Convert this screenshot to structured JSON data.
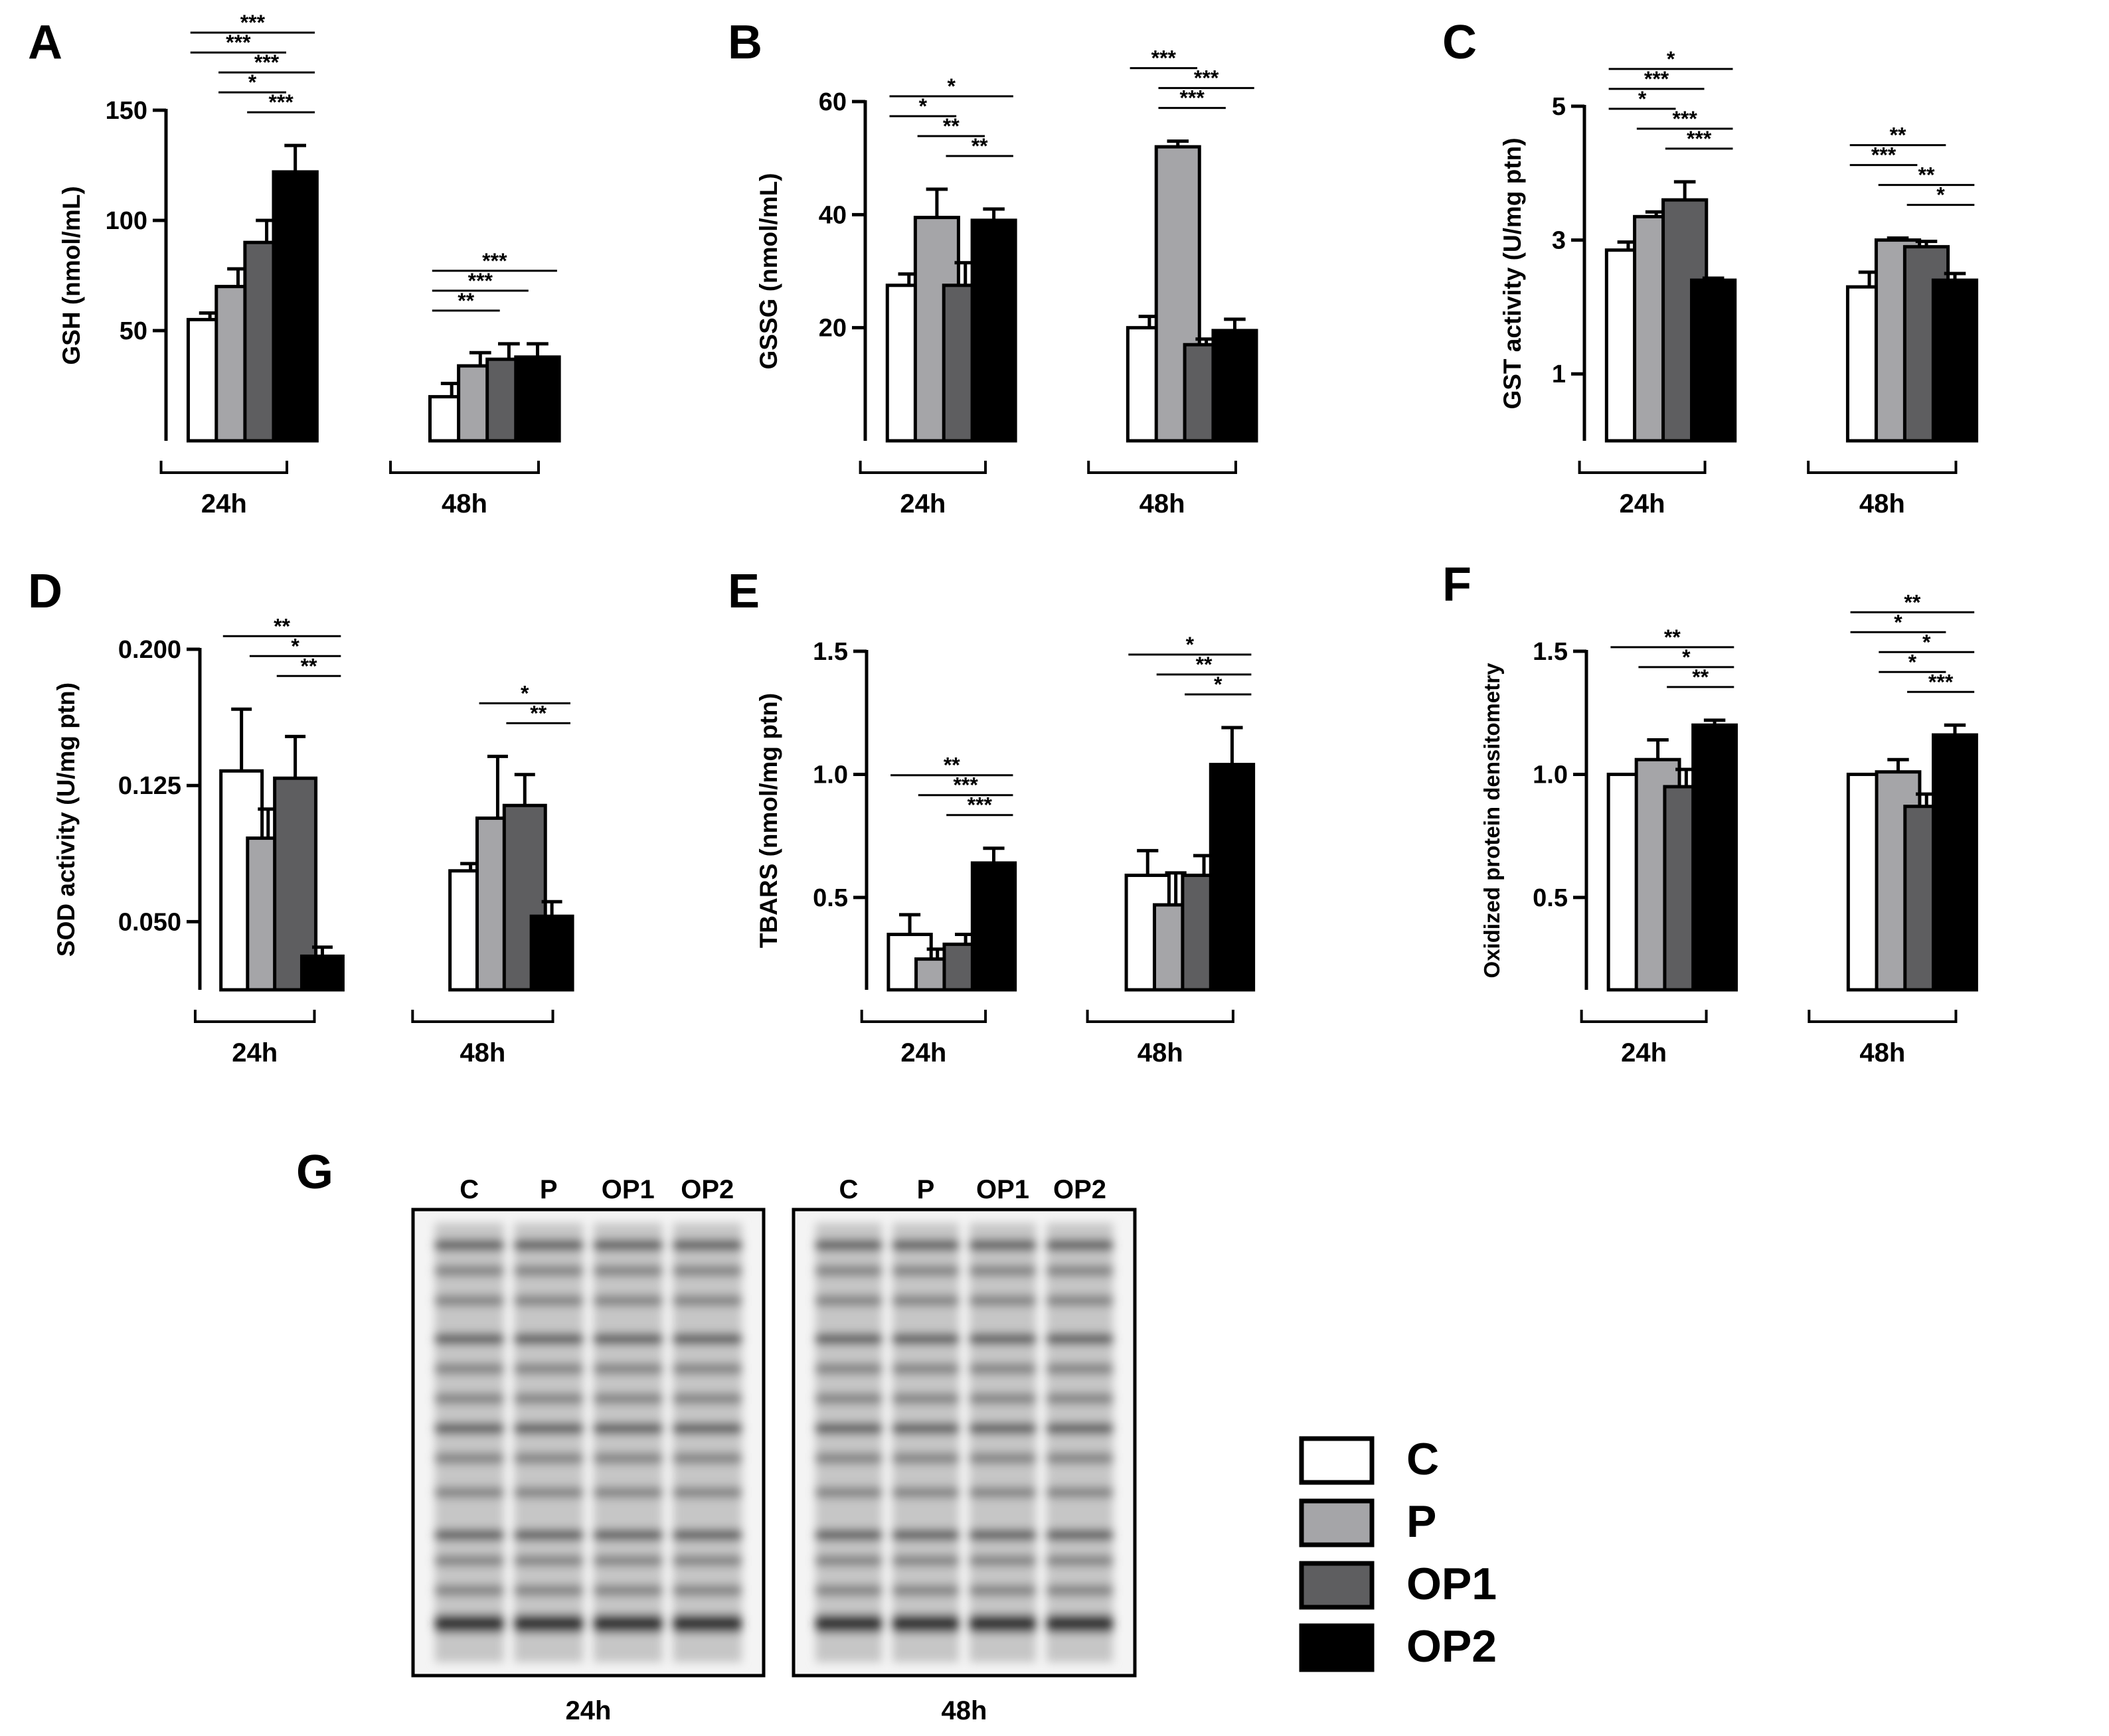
{
  "figure": {
    "panels": [
      {
        "letter": "A"
      },
      {
        "letter": "B"
      },
      {
        "letter": "C"
      },
      {
        "letter": "D"
      },
      {
        "letter": "E"
      },
      {
        "letter": "F"
      },
      {
        "letter": "G"
      }
    ]
  },
  "legend": {
    "items": [
      {
        "label": "C",
        "color": "#ffffff"
      },
      {
        "label": "P",
        "color": "#a5a5a8"
      },
      {
        "label": "OP1",
        "color": "#5e5e60"
      },
      {
        "label": "OP2",
        "color": "#000000"
      }
    ]
  },
  "blot": {
    "panel": "G",
    "lane_labels": [
      "C",
      "P",
      "OP1",
      "OP2",
      "C",
      "P",
      "OP1",
      "OP2"
    ],
    "time_labels": [
      "24h",
      "48h"
    ]
  },
  "chart_data": [
    {
      "panel": "A",
      "type": "bar",
      "ylabel": "GSH (nmol/mL)",
      "ylim": [
        0,
        150
      ],
      "yticks": [
        50,
        100,
        150
      ],
      "yticklabels": [
        "50",
        "100",
        "150"
      ],
      "groups": [
        "24h",
        "48h"
      ],
      "series": [
        {
          "name": "C",
          "values": [
            55,
            20
          ],
          "errors": [
            3,
            6
          ]
        },
        {
          "name": "P",
          "values": [
            70,
            34
          ],
          "errors": [
            8,
            6
          ]
        },
        {
          "name": "OP1",
          "values": [
            90,
            37
          ],
          "errors": [
            10,
            7
          ]
        },
        {
          "name": "OP2",
          "values": [
            122,
            38
          ],
          "errors": [
            12,
            6
          ]
        }
      ],
      "significance": [
        {
          "group": 0,
          "from": 0,
          "to": 3,
          "label": "***"
        },
        {
          "group": 0,
          "from": 0,
          "to": 2,
          "label": "***"
        },
        {
          "group": 0,
          "from": 1,
          "to": 3,
          "label": "***"
        },
        {
          "group": 0,
          "from": 1,
          "to": 2,
          "label": "*"
        },
        {
          "group": 0,
          "from": 2,
          "to": 3,
          "label": "***"
        },
        {
          "group": 1,
          "from": 0,
          "to": 3,
          "label": "***"
        },
        {
          "group": 1,
          "from": 0,
          "to": 2,
          "label": "***"
        },
        {
          "group": 1,
          "from": 0,
          "to": 1,
          "label": "**"
        }
      ]
    },
    {
      "panel": "B",
      "type": "bar",
      "ylabel": "GSSG (nmol/mL)",
      "ylim": [
        0,
        60
      ],
      "yticks": [
        20,
        40,
        60
      ],
      "yticklabels": [
        "20",
        "40",
        "60"
      ],
      "groups": [
        "24h",
        "48h"
      ],
      "series": [
        {
          "name": "C",
          "values": [
            27.5,
            20
          ],
          "errors": [
            2,
            2
          ]
        },
        {
          "name": "P",
          "values": [
            39.5,
            52
          ],
          "errors": [
            5,
            1
          ]
        },
        {
          "name": "OP1",
          "values": [
            27.5,
            17
          ],
          "errors": [
            4,
            1
          ]
        },
        {
          "name": "OP2",
          "values": [
            39,
            19.5
          ],
          "errors": [
            2,
            2
          ]
        }
      ],
      "significance": [
        {
          "group": 0,
          "from": 0,
          "to": 3,
          "label": "*"
        },
        {
          "group": 0,
          "from": 0,
          "to": 1,
          "label": "*"
        },
        {
          "group": 0,
          "from": 1,
          "to": 2,
          "label": "**"
        },
        {
          "group": 0,
          "from": 2,
          "to": 3,
          "label": "**"
        },
        {
          "group": 1,
          "from": 0,
          "to": 1,
          "label": "***"
        },
        {
          "group": 1,
          "from": 1,
          "to": 3,
          "label": "***"
        },
        {
          "group": 1,
          "from": 1,
          "to": 2,
          "label": "***"
        }
      ]
    },
    {
      "panel": "C",
      "type": "bar",
      "ylabel": "GST activity (U/mg ptn)",
      "ylim": [
        0,
        5
      ],
      "yticks": [
        1,
        3,
        5
      ],
      "yticklabels": [
        "1",
        "3",
        "5"
      ],
      "groups": [
        "24h",
        "48h"
      ],
      "series": [
        {
          "name": "C",
          "values": [
            2.85,
            2.3
          ],
          "errors": [
            0.12,
            0.22
          ]
        },
        {
          "name": "P",
          "values": [
            3.35,
            3.0
          ],
          "errors": [
            0.07,
            0.03
          ]
        },
        {
          "name": "OP1",
          "values": [
            3.6,
            2.9
          ],
          "errors": [
            0.27,
            0.08
          ]
        },
        {
          "name": "OP2",
          "values": [
            2.4,
            2.4
          ],
          "errors": [
            0.03,
            0.1
          ]
        }
      ],
      "significance": [
        {
          "group": 0,
          "from": 0,
          "to": 3,
          "label": "*"
        },
        {
          "group": 0,
          "from": 0,
          "to": 2,
          "label": "***"
        },
        {
          "group": 0,
          "from": 0,
          "to": 1,
          "label": "*"
        },
        {
          "group": 0,
          "from": 1,
          "to": 3,
          "label": "***"
        },
        {
          "group": 0,
          "from": 2,
          "to": 3,
          "label": "***"
        },
        {
          "group": 1,
          "from": 0,
          "to": 2,
          "label": "**"
        },
        {
          "group": 1,
          "from": 0,
          "to": 1,
          "label": "***"
        },
        {
          "group": 1,
          "from": 1,
          "to": 3,
          "label": "**"
        },
        {
          "group": 1,
          "from": 2,
          "to": 3,
          "label": "*"
        }
      ]
    },
    {
      "panel": "D",
      "type": "bar",
      "ylabel": "SOD activity (U/mg ptn)",
      "ylim": [
        0.0125,
        0.2
      ],
      "yticks": [
        0.05,
        0.125,
        0.2
      ],
      "yticklabels": [
        "0.050",
        "0.125",
        "0.200"
      ],
      "groups": [
        "24h",
        "48h"
      ],
      "series": [
        {
          "name": "C",
          "values": [
            0.133,
            0.078
          ],
          "errors": [
            0.034,
            0.004
          ]
        },
        {
          "name": "P",
          "values": [
            0.096,
            0.107
          ],
          "errors": [
            0.016,
            0.034
          ]
        },
        {
          "name": "OP1",
          "values": [
            0.129,
            0.114
          ],
          "errors": [
            0.023,
            0.017
          ]
        },
        {
          "name": "OP2",
          "values": [
            0.031,
            0.053
          ],
          "errors": [
            0.005,
            0.008
          ]
        }
      ],
      "significance": [
        {
          "group": 0,
          "from": 0,
          "to": 3,
          "label": "**"
        },
        {
          "group": 0,
          "from": 1,
          "to": 3,
          "label": "*"
        },
        {
          "group": 0,
          "from": 2,
          "to": 3,
          "label": "**"
        },
        {
          "group": 1,
          "from": 1,
          "to": 3,
          "label": "*"
        },
        {
          "group": 1,
          "from": 2,
          "to": 3,
          "label": "**"
        }
      ]
    },
    {
      "panel": "E",
      "type": "bar",
      "ylabel": "TBARS (nmol/mg ptn)",
      "ylim": [
        0.125,
        1.5
      ],
      "yticks": [
        0.5,
        1.0,
        1.5
      ],
      "yticklabels": [
        "0.5",
        "1.0",
        "1.5"
      ],
      "groups": [
        "24h",
        "48h"
      ],
      "series": [
        {
          "name": "C",
          "values": [
            0.35,
            0.59
          ],
          "errors": [
            0.08,
            0.1
          ]
        },
        {
          "name": "P",
          "values": [
            0.25,
            0.47
          ],
          "errors": [
            0.04,
            0.13
          ]
        },
        {
          "name": "OP1",
          "values": [
            0.31,
            0.59
          ],
          "errors": [
            0.04,
            0.08
          ]
        },
        {
          "name": "OP2",
          "values": [
            0.64,
            1.04
          ],
          "errors": [
            0.06,
            0.15
          ]
        }
      ],
      "significance": [
        {
          "group": 0,
          "from": 0,
          "to": 3,
          "label": "**"
        },
        {
          "group": 0,
          "from": 1,
          "to": 3,
          "label": "***"
        },
        {
          "group": 0,
          "from": 2,
          "to": 3,
          "label": "***"
        },
        {
          "group": 1,
          "from": 0,
          "to": 3,
          "label": "*"
        },
        {
          "group": 1,
          "from": 1,
          "to": 3,
          "label": "**"
        },
        {
          "group": 1,
          "from": 2,
          "to": 3,
          "label": "*"
        }
      ]
    },
    {
      "panel": "F",
      "type": "bar",
      "ylabel": "Oxidized protein densitometry",
      "ylim": [
        0.125,
        1.5
      ],
      "yticks": [
        0.5,
        1.0,
        1.5
      ],
      "yticklabels": [
        "0.5",
        "1.0",
        "1.5"
      ],
      "groups": [
        "24h",
        "48h"
      ],
      "series": [
        {
          "name": "C",
          "values": [
            1.0,
            1.0
          ],
          "errors": [
            0,
            0
          ]
        },
        {
          "name": "P",
          "values": [
            1.06,
            1.01
          ],
          "errors": [
            0.08,
            0.05
          ]
        },
        {
          "name": "OP1",
          "values": [
            0.95,
            0.87
          ],
          "errors": [
            0.07,
            0.05
          ]
        },
        {
          "name": "OP2",
          "values": [
            1.2,
            1.16
          ],
          "errors": [
            0.02,
            0.04
          ]
        }
      ],
      "significance": [
        {
          "group": 0,
          "from": 0,
          "to": 3,
          "label": "**"
        },
        {
          "group": 0,
          "from": 1,
          "to": 3,
          "label": "*"
        },
        {
          "group": 0,
          "from": 2,
          "to": 3,
          "label": "**"
        },
        {
          "group": 1,
          "from": 0,
          "to": 3,
          "label": "**"
        },
        {
          "group": 1,
          "from": 0,
          "to": 2,
          "label": "*"
        },
        {
          "group": 1,
          "from": 1,
          "to": 3,
          "label": "*"
        },
        {
          "group": 1,
          "from": 1,
          "to": 2,
          "label": "*"
        },
        {
          "group": 1,
          "from": 2,
          "to": 3,
          "label": "***"
        }
      ]
    }
  ]
}
